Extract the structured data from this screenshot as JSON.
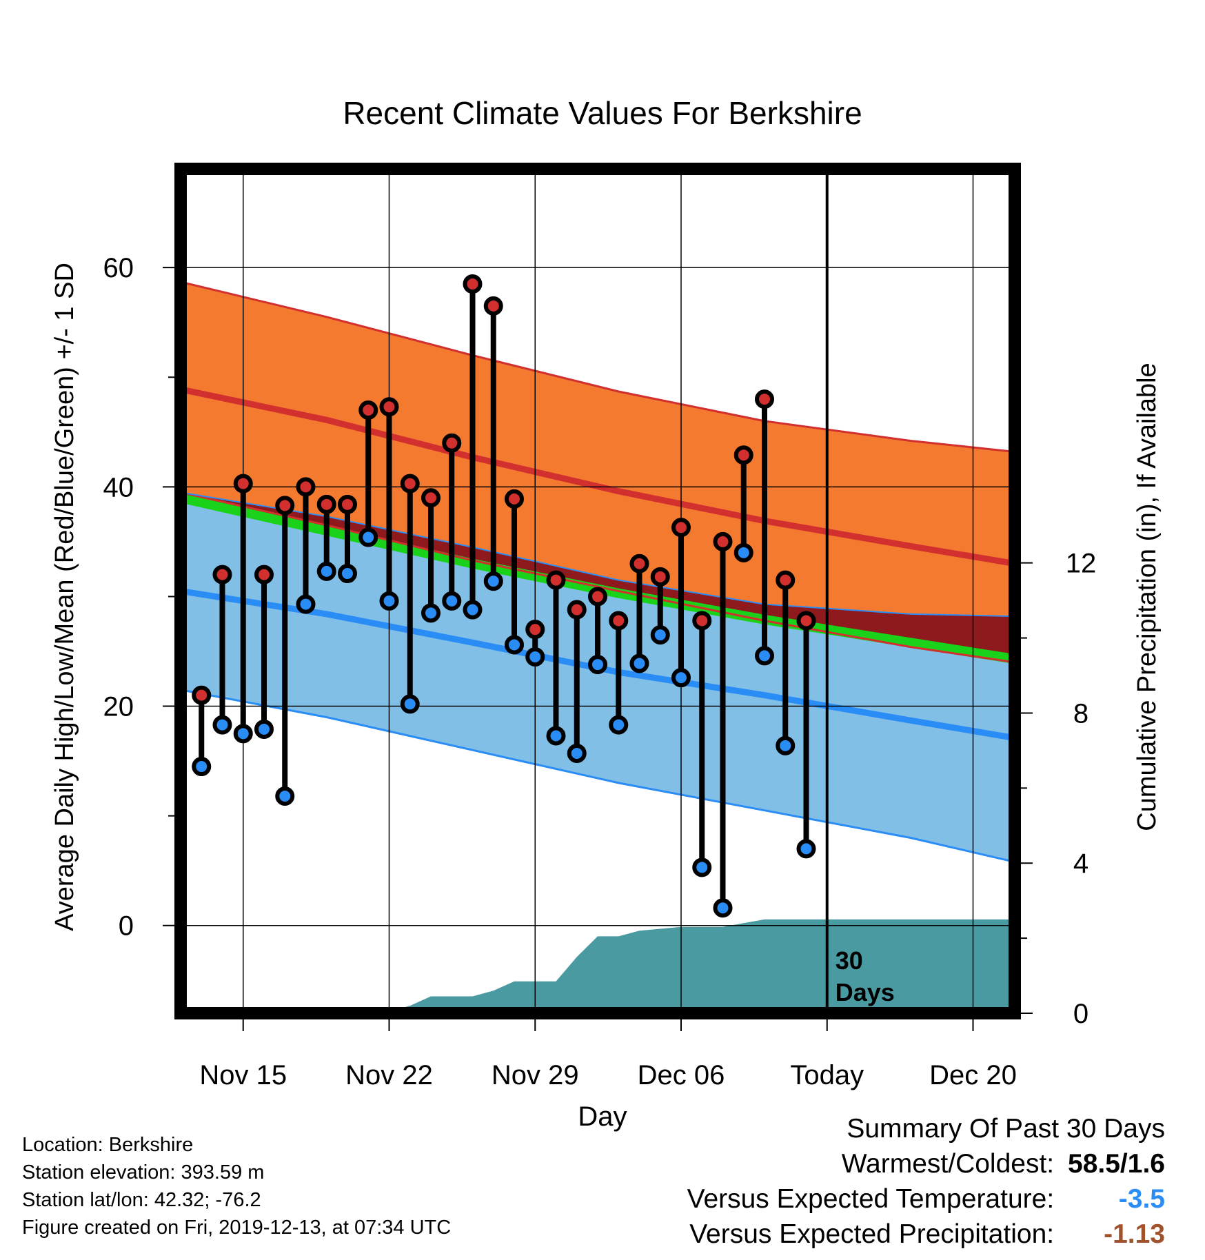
{
  "chart_data": {
    "type": "line",
    "title": "Recent Climate Values For Berkshire",
    "xlabel": "Day",
    "ylabel": "Average Daily High/Low/Mean (Red/Blue/Green) +/- 1 SD",
    "y2label": "Cumulative Precipitation (in), If Available",
    "x_start": "2019-11-12",
    "x_end": "2019-12-22",
    "ylim": [
      -8,
      69
    ],
    "y2lim": [
      0,
      22.5
    ],
    "yticks": [
      0,
      20,
      40,
      60
    ],
    "y2ticks": [
      0,
      4,
      8,
      12
    ],
    "xticks": [
      {
        "date": "2019-11-15",
        "label": "Nov 15"
      },
      {
        "date": "2019-11-22",
        "label": "Nov 22"
      },
      {
        "date": "2019-11-29",
        "label": "Nov 29"
      },
      {
        "date": "2019-12-06",
        "label": "Dec 06"
      },
      {
        "date": "2019-12-13",
        "label": "Today"
      },
      {
        "date": "2019-12-20",
        "label": "Dec 20"
      }
    ],
    "today": "2019-12-13",
    "today_annotation": [
      "30",
      "Days"
    ],
    "grid": true,
    "normal_bands": {
      "x": [
        "2019-11-12",
        "2019-11-19",
        "2019-11-26",
        "2019-12-03",
        "2019-12-10",
        "2019-12-17",
        "2019-12-22"
      ],
      "high_mean": [
        48.9,
        46.1,
        42.7,
        39.6,
        36.9,
        34.6,
        33.0
      ],
      "high_upper": [
        58.7,
        55.5,
        52.0,
        48.7,
        46.0,
        44.2,
        43.2
      ],
      "high_lower": [
        39.5,
        36.5,
        33.3,
        30.5,
        27.8,
        25.4,
        24.0
      ],
      "mean_mean": [
        39.0,
        36.0,
        33.0,
        30.3,
        27.9,
        25.8,
        24.3
      ],
      "low_mean": [
        30.5,
        28.4,
        25.8,
        23.1,
        21.0,
        18.7,
        17.1
      ],
      "low_upper": [
        39.5,
        37.3,
        34.5,
        31.5,
        29.3,
        28.4,
        28.2
      ],
      "low_lower": [
        21.5,
        19.0,
        16.0,
        13.0,
        10.5,
        8.0,
        5.8
      ]
    },
    "observations": {
      "dates": [
        "2019-11-13",
        "2019-11-14",
        "2019-11-15",
        "2019-11-16",
        "2019-11-17",
        "2019-11-18",
        "2019-11-19",
        "2019-11-20",
        "2019-11-21",
        "2019-11-22",
        "2019-11-23",
        "2019-11-24",
        "2019-11-25",
        "2019-11-26",
        "2019-11-27",
        "2019-11-28",
        "2019-11-29",
        "2019-11-30",
        "2019-12-01",
        "2019-12-02",
        "2019-12-03",
        "2019-12-04",
        "2019-12-05",
        "2019-12-06",
        "2019-12-07",
        "2019-12-08",
        "2019-12-09",
        "2019-12-10",
        "2019-12-11",
        "2019-12-12"
      ],
      "high": [
        21,
        32,
        40.3,
        32,
        38.3,
        40,
        38.4,
        38.4,
        47,
        47.3,
        40.3,
        39,
        44,
        58.5,
        56.5,
        38.9,
        27,
        31.5,
        28.8,
        30,
        27.8,
        33,
        31.8,
        36.3,
        27.8,
        35,
        42.9,
        48,
        31.5,
        27.8
      ],
      "low": [
        14.5,
        18.3,
        17.5,
        17.9,
        11.8,
        29.3,
        32.3,
        32.1,
        35.4,
        29.6,
        20.2,
        28.5,
        29.6,
        28.8,
        31.4,
        25.6,
        24.5,
        17.3,
        15.7,
        23.8,
        18.3,
        23.9,
        26.5,
        22.6,
        5.3,
        1.6,
        34,
        24.6,
        16.4,
        7
      ]
    },
    "precipitation": {
      "dates": [
        "2019-11-12",
        "2019-11-21",
        "2019-11-22",
        "2019-11-23",
        "2019-11-24",
        "2019-11-25",
        "2019-11-26",
        "2019-11-27",
        "2019-11-28",
        "2019-11-29",
        "2019-11-30",
        "2019-12-01",
        "2019-12-02",
        "2019-12-03",
        "2019-12-04",
        "2019-12-05",
        "2019-12-06",
        "2019-12-07",
        "2019-12-08",
        "2019-12-09",
        "2019-12-10",
        "2019-12-11",
        "2019-12-12",
        "2019-12-22"
      ],
      "cumulative": [
        0,
        0,
        0.05,
        0.2,
        0.45,
        0.45,
        0.45,
        0.6,
        0.85,
        0.85,
        0.85,
        1.5,
        2.05,
        2.05,
        2.2,
        2.25,
        2.3,
        2.3,
        2.3,
        2.4,
        2.5,
        2.5,
        2.5,
        2.5
      ]
    },
    "colors": {
      "high_band": "#f47a30",
      "high_line": "#d22f2f",
      "low_band": "#82bfe6",
      "low_line": "#2a8df5",
      "mean_line": "#1ad21a",
      "departure_band": "#8e1a1e",
      "precip": "#4a9aa2",
      "high_marker": "#d22f2f",
      "low_marker": "#2a8df5"
    }
  },
  "footer": {
    "location": "Location: Berkshire",
    "elevation": "Station elevation: 393.59 m",
    "latlon": "Station lat/lon: 42.32; -76.2",
    "created": "Figure created on Fri, 2019-12-13, at 07:34 UTC"
  },
  "summary": {
    "heading": "Summary Of Past 30 Days",
    "warmest_label": "Warmest/Coldest:",
    "warmest_value": "58.5/1.6",
    "temp_label": "Versus Expected Temperature:",
    "temp_value": "-3.5",
    "temp_color": "#2a8df5",
    "precip_label": "Versus Expected Precipitation:",
    "precip_value": "-1.13",
    "precip_color": "#a0522d"
  }
}
